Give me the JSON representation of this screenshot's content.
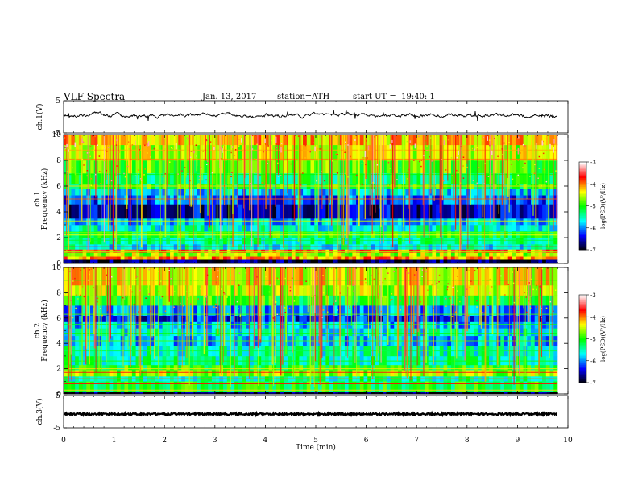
{
  "header": {
    "title": "VLF Spectra",
    "date": "Jan. 13, 2017",
    "station": "station=ATH",
    "start_ut": "start UT =  19:40: 1"
  },
  "chart_data": [
    {
      "type": "line",
      "ylabel": "ch.1(V)",
      "ylim": [
        -5,
        5
      ],
      "yticks": [
        "5",
        "-5"
      ],
      "xlim": [
        0,
        10
      ],
      "color": "#000000"
    },
    {
      "type": "heatmap",
      "ylabel_lines": [
        "ch.1",
        "Frequency (kHz)"
      ],
      "ylim": [
        0,
        10
      ],
      "yticks": [
        "0",
        "2",
        "4",
        "6",
        "8",
        "10"
      ],
      "xlim": [
        0,
        10
      ],
      "colorbar": {
        "label": "log(PSD)(V²/Hz)",
        "range": [
          -7,
          -3
        ],
        "ticks": [
          "-3",
          "-4",
          "-5",
          "-6",
          "-7"
        ],
        "colors": [
          "#ffffff",
          "#ff0000",
          "#ffff00",
          "#00ff00",
          "#00ffff",
          "#0000ff",
          "#000000"
        ]
      }
    },
    {
      "type": "heatmap",
      "ylabel_lines": [
        "ch.2",
        "Frequency (kHz)"
      ],
      "ylim": [
        0,
        10
      ],
      "yticks": [
        "0",
        "2",
        "4",
        "6",
        "8",
        "10"
      ],
      "xlim": [
        0,
        10
      ],
      "colorbar": {
        "label": "log(PSD)(V²/Hz)",
        "range": [
          -7,
          -3
        ],
        "ticks": [
          "-3",
          "-4",
          "-5",
          "-6",
          "-7"
        ],
        "colors": [
          "#ffffff",
          "#ff0000",
          "#ffff00",
          "#00ff00",
          "#00ffff",
          "#0000ff",
          "#000000"
        ]
      }
    },
    {
      "type": "line",
      "ylabel": "ch.3(V)",
      "ylim": [
        -5,
        5
      ],
      "yticks": [
        "5",
        "-5"
      ],
      "xlim": [
        0,
        10
      ],
      "xlabel": "Time (min)",
      "xticks": [
        "0",
        "1",
        "2",
        "3",
        "4",
        "5",
        "6",
        "7",
        "8",
        "9",
        "10"
      ],
      "color": "#000000"
    }
  ]
}
